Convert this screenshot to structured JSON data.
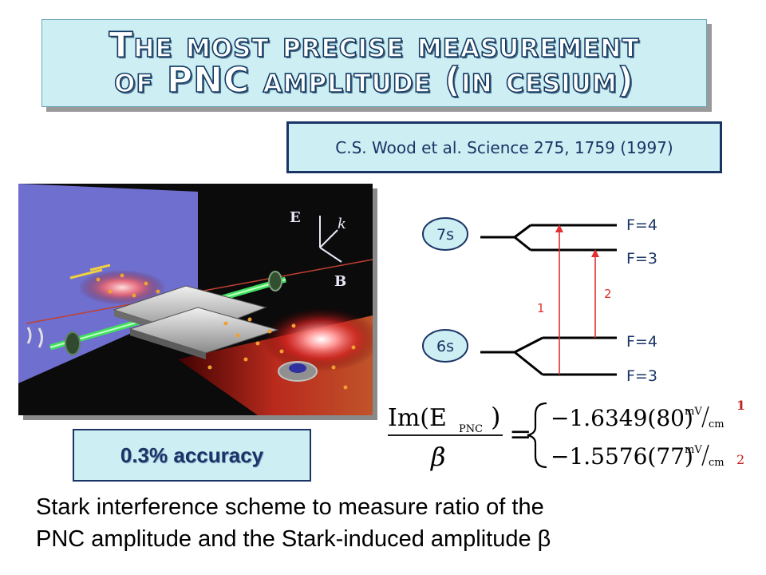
{
  "slide": {
    "title_line1": "The most precise measurement",
    "title_line2": "of PNC amplitude (in cesium)",
    "citation": "C.S. Wood et al. Science 275, 1759 (1997)",
    "accuracy": "0.3% accuracy",
    "bottom_line1": "Stark interference scheme to measure ratio of the",
    "bottom_line2": "PNC amplitude and the Stark-induced amplitude β"
  },
  "diagram": {
    "upper_state": "7s",
    "lower_state": "6s",
    "upper_F_top": "F=4",
    "upper_F_bottom": "F=3",
    "lower_F_top": "F=4",
    "lower_F_bottom": "F=3",
    "transition_1": "1",
    "transition_2": "2",
    "arrow_color": "#e03030",
    "level_color": "#1a3466"
  },
  "formula": {
    "numerator": "Im(E",
    "subscript": "PNC",
    "denominator": "β",
    "value_1": "−1.6349(80)",
    "value_2": "−1.5576(77)",
    "unit_num": "mV",
    "unit_den": "cm",
    "marker_1": "1",
    "marker_2": "2"
  },
  "photo": {
    "vector_e": "E",
    "vector_k": "k",
    "vector_b": "B"
  }
}
